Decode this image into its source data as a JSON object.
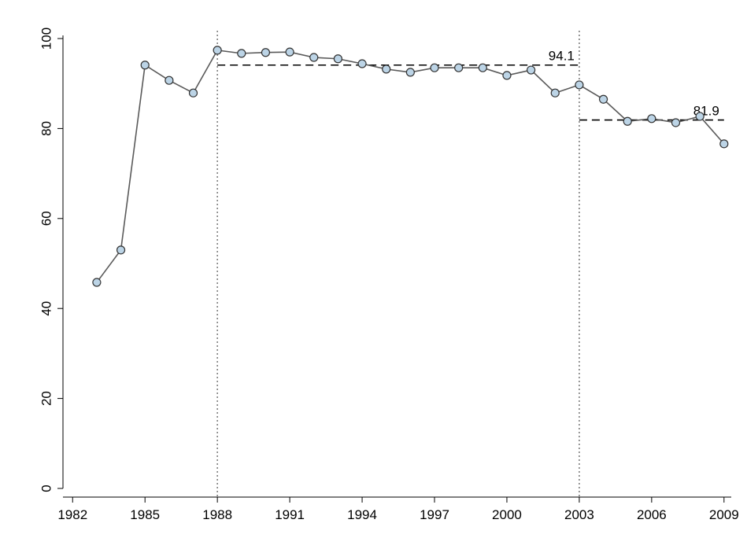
{
  "chart_data": {
    "type": "line",
    "x": [
      1983,
      1984,
      1985,
      1986,
      1987,
      1988,
      1989,
      1990,
      1991,
      1992,
      1993,
      1994,
      1995,
      1996,
      1997,
      1998,
      1999,
      2000,
      2001,
      2002,
      2003,
      2004,
      2005,
      2006,
      2007,
      2008,
      2009
    ],
    "series": [
      {
        "color": "#5a5a5a",
        "marker_color": "#bcd4e6",
        "values": [
          45.8,
          53.0,
          94.1,
          90.7,
          87.9,
          97.4,
          96.7,
          96.9,
          97.0,
          95.8,
          95.5,
          94.4,
          93.2,
          92.5,
          93.5,
          93.5,
          93.5,
          91.8,
          93.0,
          87.9,
          89.7,
          86.5,
          81.6,
          82.2,
          81.3,
          82.7,
          76.6
        ]
      }
    ],
    "xlim": [
      1981.6,
      2009.3
    ],
    "xticks": [
      1982,
      1985,
      1988,
      1991,
      1994,
      1997,
      2000,
      2003,
      2006,
      2009
    ],
    "ylim": [
      0,
      100
    ],
    "yticks": [
      0,
      20,
      40,
      60,
      80,
      100
    ],
    "vlines": [
      1988,
      2003
    ],
    "reference_lines": [
      {
        "value": 94.1,
        "from": 1988,
        "to": 2003
      },
      {
        "value": 81.9,
        "from": 2003,
        "to": 2009
      }
    ]
  }
}
